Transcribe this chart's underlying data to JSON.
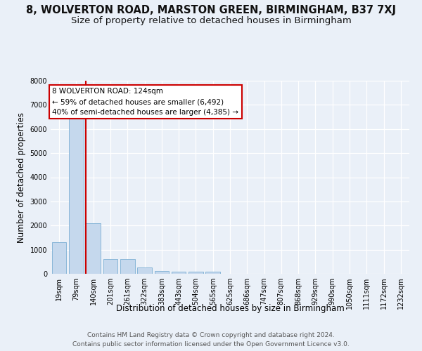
{
  "title": "8, WOLVERTON ROAD, MARSTON GREEN, BIRMINGHAM, B37 7XJ",
  "subtitle": "Size of property relative to detached houses in Birmingham",
  "xlabel": "Distribution of detached houses by size in Birmingham",
  "ylabel": "Number of detached properties",
  "footer_line1": "Contains HM Land Registry data © Crown copyright and database right 2024.",
  "footer_line2": "Contains public sector information licensed under the Open Government Licence v3.0.",
  "categories": [
    "19sqm",
    "79sqm",
    "140sqm",
    "201sqm",
    "261sqm",
    "322sqm",
    "383sqm",
    "443sqm",
    "504sqm",
    "565sqm",
    "625sqm",
    "686sqm",
    "747sqm",
    "807sqm",
    "868sqm",
    "929sqm",
    "990sqm",
    "1050sqm",
    "1111sqm",
    "1172sqm",
    "1232sqm"
  ],
  "values": [
    1300,
    6550,
    2100,
    620,
    620,
    260,
    130,
    100,
    75,
    75,
    0,
    0,
    0,
    0,
    0,
    0,
    0,
    0,
    0,
    0,
    0
  ],
  "bar_color": "#c5d8ed",
  "bar_edge_color": "#7bafd4",
  "vline_color": "#cc0000",
  "vline_x": 1.575,
  "annotation_text": "8 WOLVERTON ROAD: 124sqm\n← 59% of detached houses are smaller (6,492)\n40% of semi-detached houses are larger (4,385) →",
  "ylim": [
    0,
    8000
  ],
  "yticks": [
    0,
    1000,
    2000,
    3000,
    4000,
    5000,
    6000,
    7000,
    8000
  ],
  "bg_color": "#eaf0f8",
  "grid_color": "#ffffff",
  "title_fontsize": 10.5,
  "subtitle_fontsize": 9.5,
  "ylabel_fontsize": 8.5,
  "xlabel_fontsize": 8.5,
  "tick_fontsize": 7,
  "annotation_fontsize": 7.5,
  "footer_fontsize": 6.5
}
